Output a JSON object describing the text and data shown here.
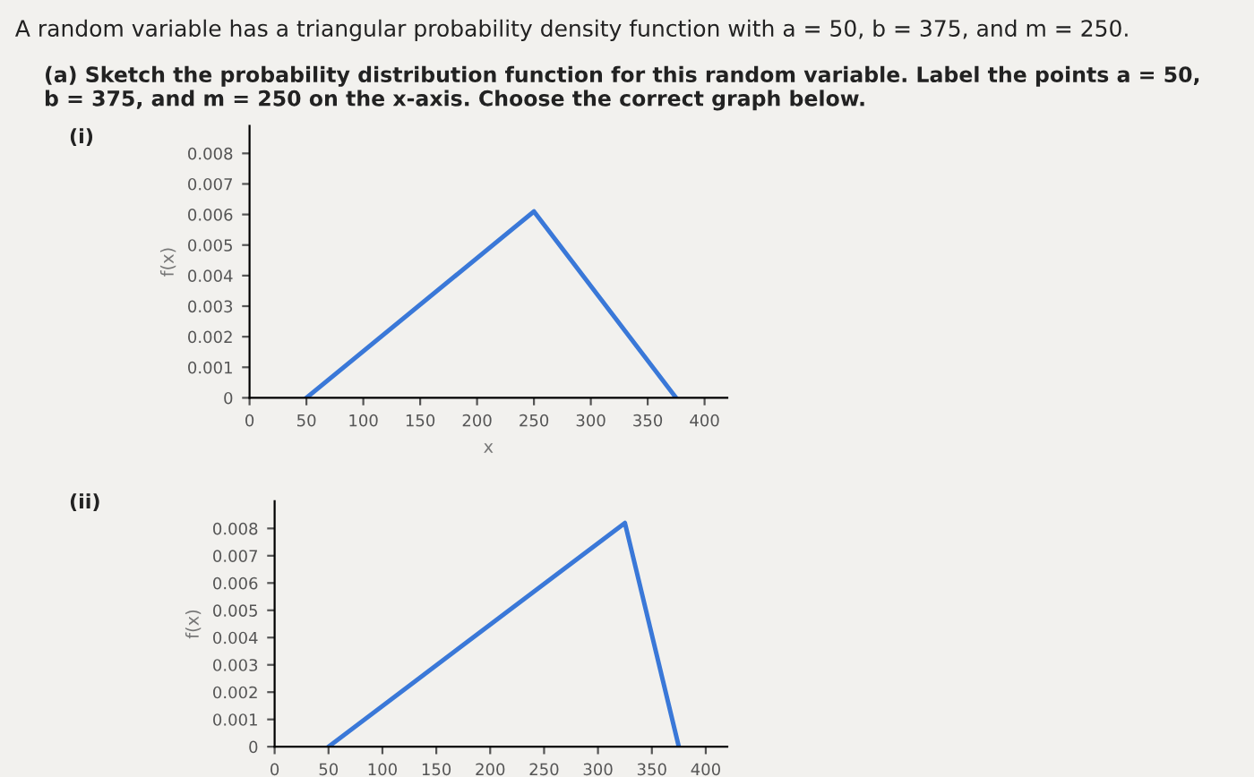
{
  "chart_data": [
    {
      "type": "line",
      "xlabel": "x",
      "ylabel": "f(x)",
      "annotations": [
        "A random variable has a triangular probability density function with a = 50, b = 375, and m = 250.",
        "(a) Sketch the probability distribution function for this random variable. Label the points a = 50, b = 375, and m = 250 on the x-axis. Choose the correct graph below.",
        "(i)"
      ],
      "x": [
        50,
        250,
        375
      ],
      "series": [
        {
          "color": "#3a78d8",
          "values": [
            0,
            0.0061,
            0
          ]
        }
      ],
      "xlim": [
        0,
        420
      ],
      "ylim": [
        0,
        0.0089
      ],
      "xticks": [
        0,
        50,
        100,
        150,
        200,
        250,
        300,
        350,
        400
      ],
      "yticks": [
        0,
        0.001,
        0.002,
        0.003,
        0.004,
        0.005,
        0.006,
        0.007,
        0.008
      ],
      "grid": false,
      "legend": false,
      "marker": "none",
      "line_style": "solid"
    },
    {
      "type": "line",
      "ylabel": "f(x)",
      "annotations": [
        "(ii)"
      ],
      "x": [
        50,
        325,
        375
      ],
      "series": [
        {
          "color": "#3a78d8",
          "values": [
            0,
            0.0082,
            0
          ]
        }
      ],
      "xlim": [
        0,
        420
      ],
      "ylim": [
        0,
        0.009
      ],
      "xticks": [
        0,
        50,
        100,
        150,
        200,
        250,
        300,
        350,
        400
      ],
      "yticks": [
        0,
        0.001,
        0.002,
        0.003,
        0.004,
        0.005,
        0.006,
        0.007,
        0.008
      ],
      "grid": false,
      "legend": false,
      "marker": "none",
      "line_style": "solid"
    }
  ]
}
